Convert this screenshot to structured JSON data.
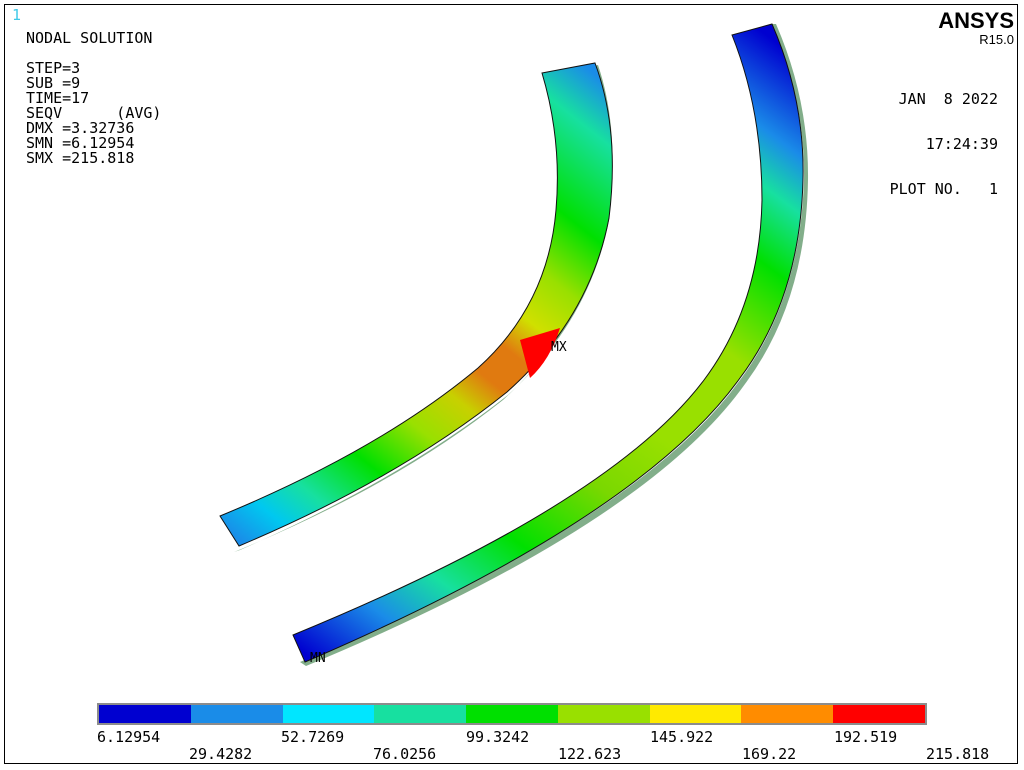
{
  "window_number": "1",
  "title": "NODAL SOLUTION",
  "info_lines": [
    "STEP=3",
    "SUB =9",
    "TIME=17",
    "SEQV      (AVG)",
    "DMX =3.32736",
    "SMN =6.12954",
    "SMX =215.818"
  ],
  "brand": "ANSYS",
  "release": "R15.0",
  "date": "JAN  8 2022",
  "time": "17:24:39",
  "plot_no": "PLOT NO.   1",
  "labels": {
    "mx": "MX",
    "mn": "MN"
  },
  "legend": {
    "colors": [
      "#0000d0",
      "#1a8ce8",
      "#00e6ff",
      "#17e0a0",
      "#00e000",
      "#99e000",
      "#ffea00",
      "#ff8c00",
      "#ff0000"
    ],
    "values_upper": [
      "6.12954",
      "52.7269",
      "99.3242",
      "145.922",
      "192.519"
    ],
    "values_lower": [
      "29.4282",
      "76.0256",
      "122.623",
      "169.22",
      "215.818"
    ]
  }
}
